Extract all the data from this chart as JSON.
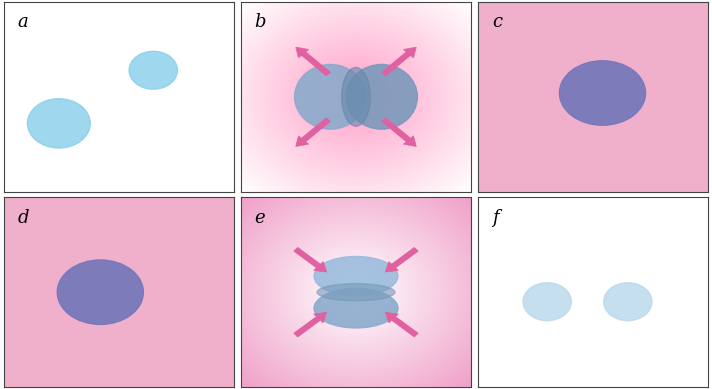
{
  "panel_info": [
    {
      "label": "a",
      "bg": "white",
      "type": "a"
    },
    {
      "label": "b",
      "bg": "radial_b",
      "type": "b"
    },
    {
      "label": "c",
      "bg": "pink",
      "type": "c"
    },
    {
      "label": "d",
      "bg": "pink",
      "type": "d"
    },
    {
      "label": "e",
      "bg": "radial_e",
      "type": "e"
    },
    {
      "label": "f",
      "bg": "white",
      "type": "f"
    }
  ],
  "light_blue": "#87ceeb",
  "mid_blue": "#7ab0d4",
  "dark_blue": "#6666aa",
  "very_light_blue": "#b8d8ec",
  "pink_bg": "#f0b0cc",
  "arrow_color": "#e060a0",
  "label_fontsize": 13,
  "label_color": "#000000",
  "radial_b_inner": [
    255,
    160,
    200
  ],
  "radial_b_outer": [
    255,
    255,
    255
  ],
  "radial_e_inner": [
    255,
    255,
    255
  ],
  "radial_e_outer": [
    240,
    160,
    200
  ]
}
